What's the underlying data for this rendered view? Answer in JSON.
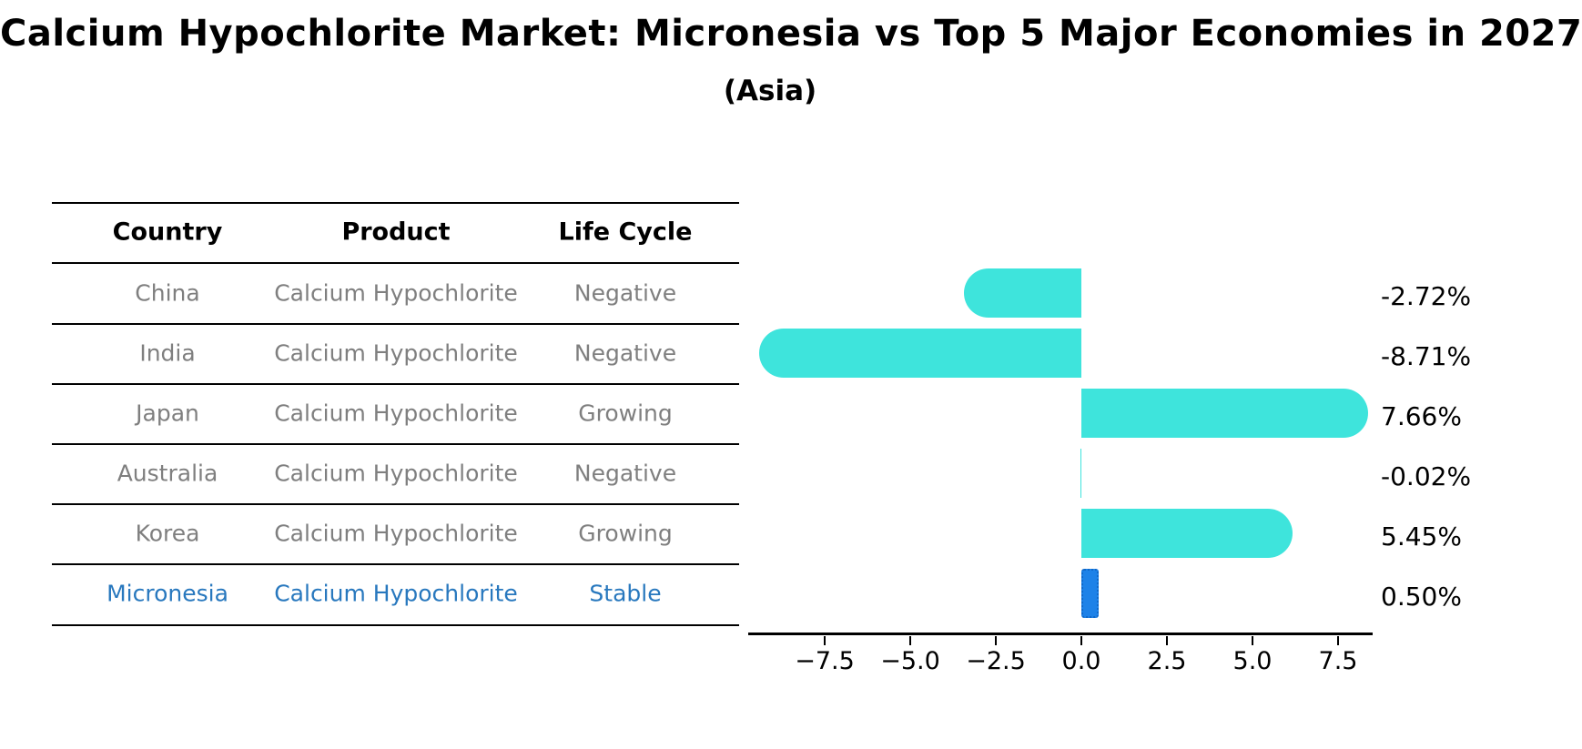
{
  "title": "Calcium Hypochlorite Market: Micronesia vs Top 5 Major Economies in 2027",
  "subtitle": "(Asia)",
  "table": {
    "headers": [
      "Country",
      "Product",
      "Life Cycle"
    ],
    "rows": [
      {
        "country": "China",
        "product": "Calcium Hypochlorite",
        "life_cycle": "Negative",
        "highlight": false
      },
      {
        "country": "India",
        "product": "Calcium Hypochlorite",
        "life_cycle": "Negative",
        "highlight": false
      },
      {
        "country": "Japan",
        "product": "Calcium Hypochlorite",
        "life_cycle": "Growing",
        "highlight": false
      },
      {
        "country": "Australia",
        "product": "Calcium Hypochlorite",
        "life_cycle": "Negative",
        "highlight": false
      },
      {
        "country": "Korea",
        "product": "Calcium Hypochlorite",
        "life_cycle": "Growing",
        "highlight": false
      },
      {
        "country": "Micronesia",
        "product": "Calcium Hypochlorite",
        "life_cycle": "Stable",
        "highlight": true
      }
    ]
  },
  "chart_data": {
    "type": "bar",
    "orientation": "horizontal",
    "categories": [
      "China",
      "India",
      "Japan",
      "Australia",
      "Korea",
      "Micronesia"
    ],
    "values": [
      -2.72,
      -8.71,
      7.66,
      -0.02,
      5.45,
      0.5
    ],
    "value_labels": [
      "-2.72%",
      "-8.71%",
      "7.66%",
      "-0.02%",
      "5.45%",
      "0.50%"
    ],
    "highlight_index": 5,
    "x_ticks": [
      "−7.5",
      "−5.0",
      "−2.5",
      "0.0",
      "2.5",
      "5.0",
      "7.5"
    ],
    "x_tick_values": [
      -7.5,
      -5.0,
      -2.5,
      0.0,
      2.5,
      5.0,
      7.5
    ],
    "xlim": [
      -9.73,
      8.48
    ],
    "grid": false,
    "legend": "none",
    "ylabel": "",
    "xlabel": ""
  },
  "colors": {
    "bar": "#3ee4dc",
    "highlight_bar": "#1e82e8",
    "highlight_bar_edge": "#1068c8",
    "highlight_text": "#2878be",
    "cell_text": "#7f7f7f",
    "header_text": "#000000",
    "background": "#ffffff"
  }
}
